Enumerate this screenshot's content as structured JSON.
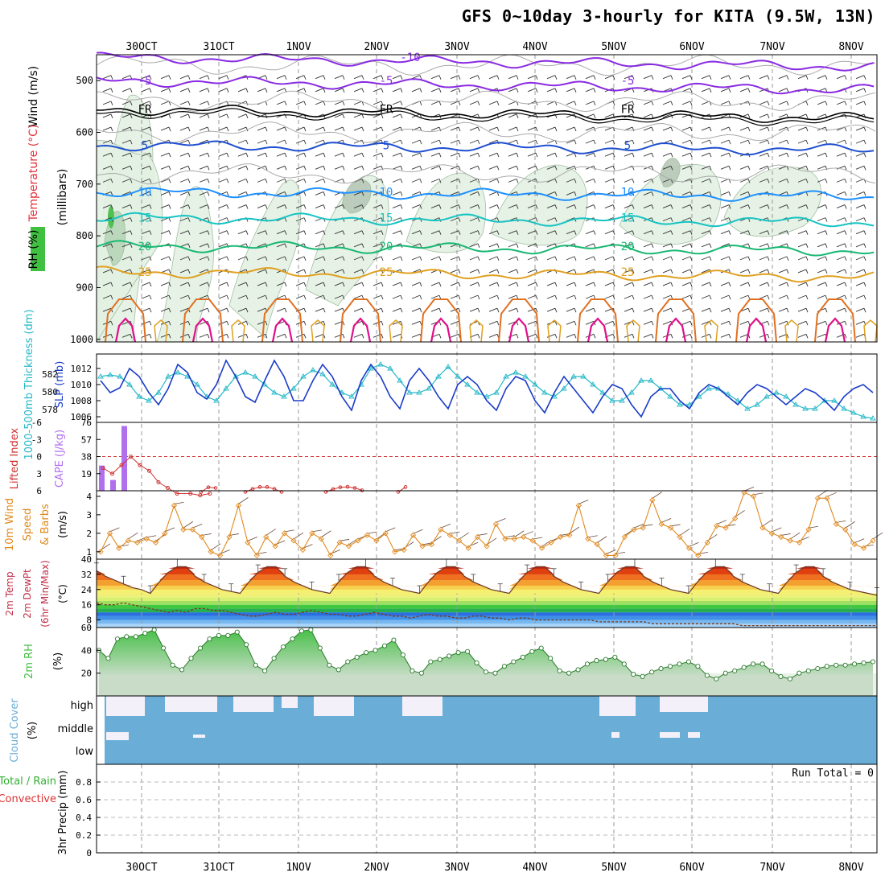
{
  "title": "GFS 0~10day 3-hourly for KITA (9.5W, 13N)",
  "days": [
    "30OCT",
    "31OCT",
    "1NOV",
    "2NOV",
    "3NOV",
    "4NOV",
    "5NOV",
    "6NOV",
    "7NOV",
    "8NOV"
  ],
  "colors": {
    "purple": "#8a2be2",
    "black": "#000000",
    "blue": "#1f4fd0",
    "lightblue": "#1e90ff",
    "cyan": "#17c3c3",
    "green": "#19b873",
    "orange": "#e0a020",
    "darkorange": "#e07020",
    "magenta": "#e0108a",
    "rhfill": "#e3f1e3",
    "slp": "#1a3cc8",
    "thick": "#26b8c8",
    "cape": "#b070ee",
    "lifted": "#d03030",
    "wind10": "#e08a20",
    "rh2m": "#48c048",
    "cloud": "#6aaed8"
  },
  "chart_data": [
    {
      "panel": "upper-air",
      "type": "contour",
      "ylabel_lines": [
        "Wind (m/s)",
        "Temperature (°C)",
        "RH (%)",
        "(millibars)"
      ],
      "yticks": [
        "500",
        "600",
        "700",
        "800",
        "900",
        "1000"
      ],
      "ylim": [
        450,
        1005
      ],
      "temperature_contours": [
        {
          "label": "-10",
          "level_mb": 455
        },
        {
          "label": "-5",
          "level_mb": 500
        },
        {
          "label": "FR",
          "level_mb": 555
        },
        {
          "label": "5",
          "level_mb": 625
        },
        {
          "label": "10",
          "level_mb": 715
        },
        {
          "label": "15",
          "level_mb": 765
        },
        {
          "label": "20",
          "level_mb": 820
        },
        {
          "label": "25",
          "level_mb": 870
        }
      ],
      "rh_labels": [
        "10",
        "30"
      ]
    },
    {
      "panel": "slp-thickness",
      "type": "line",
      "ylabel_left": "1000-500mb Thickness (dm)",
      "ylabel_right": "SLP (mb)",
      "yticks_left": [
        "578",
        "580",
        "582"
      ],
      "yticks_right": [
        "1006",
        "1008",
        "1010",
        "1012"
      ],
      "ylim_slp": [
        1005.3,
        1013.8
      ],
      "series": [
        {
          "name": "SLP (mb)",
          "values": [
            1010.5,
            1009.0,
            1009.6,
            1012.0,
            1011.0,
            1009.0,
            1007.5,
            1009.5,
            1012.5,
            1011.5,
            1009.0,
            1008.2,
            1010.0,
            1013.0,
            1011.0,
            1008.5,
            1007.8,
            1010.5,
            1013.0,
            1011.0,
            1008.0,
            1008.0,
            1010.5,
            1012.5,
            1011.0,
            1008.5,
            1006.8,
            1010.5,
            1012.5,
            1011.0,
            1008.5,
            1007.0,
            1010.5,
            1012.0,
            1010.5,
            1008.5,
            1007.0,
            1010.0,
            1011.0,
            1010.0,
            1008.0,
            1006.8,
            1009.5,
            1011.0,
            1010.5,
            1008.0,
            1006.5,
            1009.0,
            1011.0,
            1009.5,
            1008.0,
            1006.5,
            1008.5,
            1010.0,
            1009.5,
            1007.5,
            1006.0,
            1008.5,
            1009.5,
            1009.5,
            1008.0,
            1007.0,
            1009.0,
            1010.0,
            1009.5,
            1008.5,
            1007.5,
            1009.0,
            1010.0,
            1009.5,
            1008.5,
            1007.5,
            1008.5,
            1009.5,
            1009.0,
            1008.0,
            1006.8,
            1008.5,
            1009.5,
            1010.0,
            1009.0
          ]
        },
        {
          "name": "1000-500mb Thickness (dm)",
          "values": [
            1011.0,
            1011.2,
            1011.0,
            1010.0,
            1008.5,
            1008.0,
            1009.0,
            1011.0,
            1011.5,
            1011.0,
            1010.0,
            1008.5,
            1008.0,
            1009.5,
            1011.0,
            1011.5,
            1011.0,
            1010.0,
            1009.0,
            1008.5,
            1009.5,
            1011.0,
            1011.8,
            1011.3,
            1010.0,
            1009.0,
            1008.5,
            1010.0,
            1012.0,
            1012.5,
            1012.0,
            1010.5,
            1009.0,
            1009.0,
            1009.5,
            1011.0,
            1012.2,
            1011.0,
            1010.0,
            1009.0,
            1008.5,
            1009.0,
            1011.0,
            1011.5,
            1011.0,
            1010.0,
            1009.0,
            1008.5,
            1009.5,
            1011.0,
            1011.0,
            1010.0,
            1009.0,
            1008.0,
            1008.0,
            1009.0,
            1010.5,
            1010.5,
            1009.5,
            1008.5,
            1007.5,
            1007.5,
            1008.5,
            1009.5,
            1009.5,
            1008.8,
            1008.0,
            1007.0,
            1007.5,
            1008.5,
            1009.0,
            1008.5,
            1007.5,
            1007.0,
            1007.0,
            1008.0,
            1008.0,
            1007.0,
            1006.5,
            1006.0,
            1005.8
          ]
        }
      ]
    },
    {
      "panel": "cape-lifted",
      "type": "bar",
      "ylabel_left": "Lifted Index",
      "ylabel_right": "CAPE (J/kg)",
      "yticks_cape": [
        "19",
        "38",
        "57",
        "76"
      ],
      "yticks_li": [
        "-6",
        "-3",
        "0",
        "3",
        "6"
      ],
      "cape_bars": [
        {
          "x_index": 0,
          "value": 28
        },
        {
          "x_index": 1,
          "value": 12
        },
        {
          "x_index": 2,
          "value": 72
        }
      ],
      "lifted_index": [
        2.0,
        3.0,
        1.5,
        0.0,
        1.5,
        2.5,
        4.5,
        5.5,
        6.5,
        6.5,
        6.8,
        6.5,
        6.5,
        6.5,
        6.8,
        6.5,
        6.0,
        6.0,
        5.5,
        6.0,
        7.0,
        6.5,
        5.5,
        5.5,
        5.5,
        5.8,
        6.5,
        6.5,
        7.0,
        5.5,
        5.0,
        5.5,
        5.5,
        6.0
      ],
      "li_zero_line": 0
    },
    {
      "panel": "wind10m",
      "type": "line",
      "ylabel_lines": [
        "10m Wind",
        "Speed",
        "& Barbs",
        "(m/s)"
      ],
      "yticks": [
        "1",
        "2",
        "3",
        "4"
      ],
      "ylim": [
        0.6,
        4.3
      ],
      "values": [
        1.0,
        2.0,
        1.2,
        1.6,
        1.5,
        1.7,
        1.5,
        2.0,
        3.5,
        2.2,
        2.2,
        1.8,
        1.0,
        0.8,
        1.8,
        3.5,
        1.5,
        0.8,
        1.8,
        1.3,
        2.0,
        1.6,
        1.1,
        2.0,
        1.7,
        0.8,
        1.5,
        1.3,
        1.6,
        1.9,
        1.6,
        2.0,
        1.0,
        1.1,
        1.9,
        1.3,
        1.4,
        2.2,
        1.9,
        1.6,
        1.2,
        1.8,
        1.3,
        2.5,
        1.7,
        1.7,
        1.8,
        1.6,
        1.2,
        1.5,
        1.8,
        1.9,
        3.5,
        1.7,
        1.4,
        0.8,
        0.8,
        1.8,
        2.2,
        2.3,
        3.8,
        2.5,
        2.3,
        1.8,
        1.2,
        0.8,
        1.5,
        2.4,
        2.3,
        2.8,
        4.2,
        4.0,
        2.3,
        2.0,
        1.8,
        1.6,
        1.5,
        2.2,
        3.9,
        3.9,
        2.5,
        2.2,
        1.4,
        1.2,
        1.6
      ]
    },
    {
      "panel": "temp2m",
      "type": "area",
      "ylabel_lines": [
        "2m Temp",
        "2m DewPt",
        "(6hr Min/Max)",
        "(°C)"
      ],
      "yticks": [
        "8",
        "16",
        "24",
        "32",
        "40"
      ],
      "ylim": [
        4,
        40
      ],
      "temperature": [
        34,
        31,
        29,
        27,
        25,
        24,
        22,
        28,
        33,
        36,
        36,
        31,
        28,
        26,
        24,
        23,
        22,
        28,
        33,
        36,
        36,
        31,
        28,
        26,
        24,
        23,
        22,
        28,
        33,
        36,
        36,
        31,
        28,
        26,
        24,
        23,
        22,
        28,
        33,
        36,
        36,
        31,
        28,
        26,
        24,
        23,
        22,
        28,
        33,
        36,
        36,
        31,
        28,
        26,
        24,
        23,
        22,
        28,
        33,
        36,
        36,
        31,
        28,
        26,
        24,
        23,
        22,
        28,
        33,
        36,
        36,
        31,
        28,
        26,
        24,
        23,
        22,
        28,
        33,
        36,
        36,
        31,
        28,
        26,
        24,
        23,
        22,
        21
      ],
      "dewpoint": [
        17,
        16,
        16,
        17,
        16,
        15,
        14,
        13,
        12,
        13,
        12,
        14,
        14,
        13,
        13,
        12,
        11,
        10,
        10,
        11,
        12,
        11,
        11,
        12,
        13,
        12,
        11,
        11,
        10,
        10,
        11,
        12,
        11,
        10,
        10,
        9,
        10,
        11,
        10,
        10,
        9,
        9,
        10,
        10,
        9,
        9,
        8,
        9,
        9,
        8,
        8,
        8,
        8,
        8,
        8,
        8,
        7,
        7,
        7,
        7,
        7,
        7,
        6,
        6,
        6,
        6,
        6,
        6,
        6,
        6,
        6,
        6,
        5,
        5,
        5,
        5,
        5,
        5,
        5,
        5,
        5,
        5,
        5,
        5,
        5,
        5,
        5,
        5
      ]
    },
    {
      "panel": "rh2m",
      "type": "area",
      "ylabel_lines": [
        "2m RH",
        "(%)"
      ],
      "yticks": [
        "20",
        "40",
        "60"
      ],
      "ylim": [
        0,
        60
      ],
      "values": [
        40,
        33,
        50,
        52,
        52,
        55,
        58,
        42,
        27,
        23,
        33,
        42,
        50,
        53,
        53,
        56,
        45,
        27,
        22,
        33,
        43,
        50,
        57,
        58,
        42,
        27,
        23,
        30,
        34,
        38,
        40,
        44,
        49,
        36,
        22,
        20,
        30,
        32,
        35,
        38,
        39,
        29,
        21,
        20,
        26,
        30,
        34,
        39,
        42,
        33,
        22,
        20,
        23,
        28,
        31,
        32,
        34,
        28,
        19,
        17,
        21,
        24,
        26,
        28,
        30,
        26,
        18,
        15,
        20,
        22,
        25,
        28,
        28,
        22,
        17,
        15,
        20,
        22,
        24,
        26,
        27,
        27,
        28,
        29,
        30
      ],
      "fill_to": 0
    },
    {
      "panel": "cloud",
      "type": "bar",
      "ylabel_lines": [
        "Cloud Cover",
        "(%)"
      ],
      "row_labels": [
        "high",
        "middle",
        "low"
      ]
    },
    {
      "panel": "precip",
      "type": "bar",
      "ylabel_lines": [
        "3hr Precip (mm)"
      ],
      "left_labels": [
        "Total / Rain",
        "Convective"
      ],
      "yticks": [
        "0",
        "0.2",
        "0.4",
        "0.6",
        "0.8"
      ],
      "ylim": [
        0,
        1
      ],
      "annotation": "Run Total = 0",
      "values": []
    }
  ]
}
